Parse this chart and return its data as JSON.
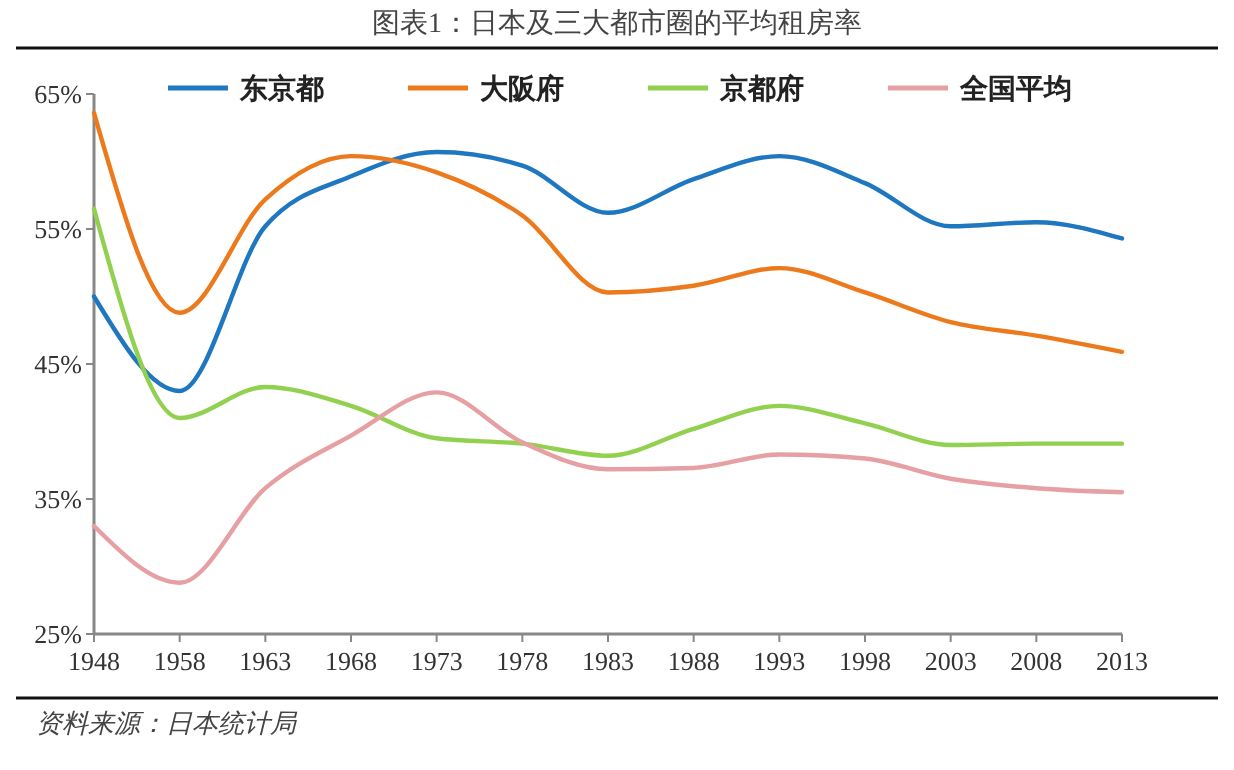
{
  "chart_data": {
    "type": "line",
    "title": "图表1：日本及三大都市圈的平均租房率",
    "categories": [
      "1948",
      "1958",
      "1963",
      "1968",
      "1973",
      "1978",
      "1983",
      "1988",
      "1993",
      "1998",
      "2003",
      "2008",
      "2013"
    ],
    "series": [
      {
        "name": "东京都",
        "color": "#1f77c0",
        "values": [
          50.0,
          43.0,
          55.2,
          58.9,
          60.7,
          59.7,
          56.2,
          58.7,
          60.4,
          58.4,
          55.2,
          55.5,
          54.3
        ]
      },
      {
        "name": "大阪府",
        "color": "#ec7a1c",
        "values": [
          63.6,
          48.8,
          57.2,
          60.4,
          59.2,
          56.0,
          50.3,
          50.8,
          52.1,
          50.3,
          48.1,
          47.1,
          45.9
        ]
      },
      {
        "name": "京都府",
        "color": "#92d050",
        "values": [
          56.5,
          41.0,
          43.3,
          41.9,
          39.5,
          39.1,
          38.2,
          40.2,
          41.9,
          40.6,
          39.0,
          39.1,
          39.1
        ]
      },
      {
        "name": "全国平均",
        "color": "#e6a0a4",
        "values": [
          33.0,
          28.8,
          35.8,
          39.7,
          42.9,
          39.2,
          37.2,
          37.3,
          38.3,
          38.0,
          36.5,
          35.8,
          35.5
        ]
      }
    ],
    "ylim": [
      25,
      65
    ],
    "yticks": [
      {
        "value": 25,
        "label": "25%"
      },
      {
        "value": 35,
        "label": "35%"
      },
      {
        "value": 45,
        "label": "45%"
      },
      {
        "value": 55,
        "label": "55%"
      },
      {
        "value": 65,
        "label": "65%"
      }
    ],
    "grid": false,
    "legend": "top",
    "marker": "none",
    "line_style": "solid",
    "annotations": [
      "资料来源：日本统计局"
    ]
  }
}
